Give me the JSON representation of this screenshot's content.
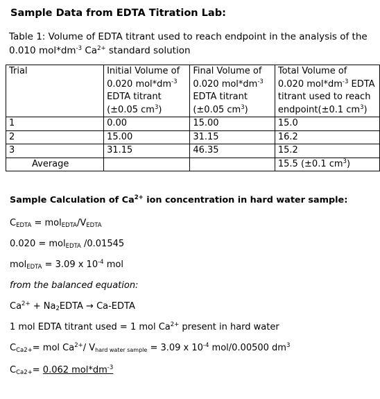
{
  "heading": "Sample Data from EDTA Titration Lab:",
  "caption": {
    "pre": "Table 1: Volume of EDTA titrant used to reach endpoint in the analysis of the 0.010 mol*dm",
    "sup1": "-3",
    "mid": " Ca",
    "sup2": "2+",
    "post": " standard solution"
  },
  "table": {
    "header": {
      "trial": "Trial",
      "initial": {
        "l1": "Initial Volume of",
        "l2a": "0.020 mol*dm",
        "l2sup": "-3",
        "l3": "EDTA titrant",
        "l4a": "(±0.05 cm",
        "l4sup": "3",
        "l4b": ")"
      },
      "final": {
        "l1": "Final Volume of",
        "l2a": "0.020 mol*dm",
        "l2sup": "-3",
        "l3": "EDTA titrant",
        "l4a": "(±0.05 cm",
        "l4sup": "3",
        "l4b": ")"
      },
      "total": {
        "l1": "Total Volume of",
        "l2a": "0.020 mol*dm",
        "l2sup": "-3",
        "l2b": " EDTA",
        "l3": "titrant used to reach",
        "l4a": "endpoint(±0.1 cm",
        "l4sup": "3",
        "l4b": ")"
      }
    },
    "rows": [
      {
        "trial": "1",
        "initial": "0.00",
        "final": "15.00",
        "total": "15.0"
      },
      {
        "trial": "2",
        "initial": "15.00",
        "final": "31.15",
        "total": "16.2"
      },
      {
        "trial": "3",
        "initial": "31.15",
        "final": "46.35",
        "total": "15.2"
      }
    ],
    "average": {
      "label": "Average",
      "value_a": "15.5 (±0.1 cm",
      "value_sup": "3",
      "value_b": ")"
    }
  },
  "calc": {
    "title_a": "Sample Calculation of Ca",
    "title_sup": "2+",
    "title_b": " ion concentration in hard water sample:",
    "l1": {
      "a": "C",
      "sub1": "EDTA",
      "b": " = mol",
      "sub2": "EDTA",
      "c": "/V",
      "sub3": "EDTA"
    },
    "l2": {
      "a": "0.020 = mol",
      "sub1": "EDTA",
      "b": " /0.01545"
    },
    "l3": {
      "a": "mol",
      "sub1": "EDTA",
      "b": " = 3.09 x 10",
      "sup1": "-4",
      "c": " mol"
    },
    "l4": "from the balanced equation:",
    "l5": {
      "a": "Ca",
      "sup1": "2+",
      "b": " + Na",
      "sub1": "2",
      "c": "EDTA → Ca-EDTA"
    },
    "l6": {
      "a": "1 mol EDTA titrant used = 1 mol Ca",
      "sup1": "2+",
      "b": " present in hard water"
    },
    "l7": {
      "a": "C",
      "sub1": "Ca2+",
      "b": "= mol Ca",
      "sup1": "2+",
      "c": "/ V",
      "sub2": "hard water sample",
      "d": " = 3.09 x 10",
      "sup2": "-4",
      "e": " mol/0.00500 dm",
      "sup3": "3"
    },
    "l8": {
      "a": "C",
      "sub1": "Ca2+",
      "b": "= ",
      "u": "0.062 mol*dm",
      "usup": "-3"
    }
  }
}
